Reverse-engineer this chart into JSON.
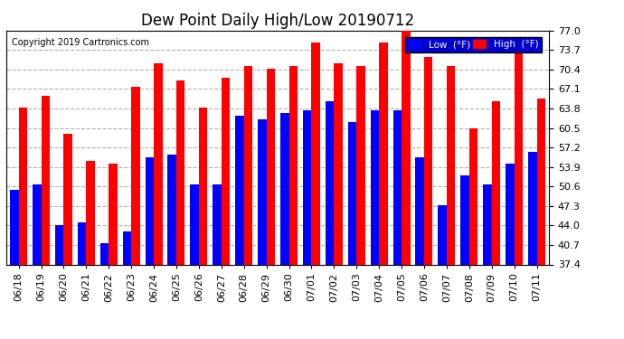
{
  "title": "Dew Point Daily High/Low 20190712",
  "copyright": "Copyright 2019 Cartronics.com",
  "background_color": "#ffffff",
  "plot_bg_color": "#ffffff",
  "bar_width": 0.38,
  "dates": [
    "06/18",
    "06/19",
    "06/20",
    "06/21",
    "06/22",
    "06/23",
    "06/24",
    "06/25",
    "06/26",
    "06/27",
    "06/28",
    "06/29",
    "06/30",
    "07/01",
    "07/02",
    "07/03",
    "07/04",
    "07/05",
    "07/06",
    "07/07",
    "07/08",
    "07/09",
    "07/10",
    "07/11"
  ],
  "low_values": [
    50.0,
    51.0,
    44.0,
    44.5,
    41.0,
    43.0,
    55.5,
    56.0,
    51.0,
    51.0,
    62.5,
    62.0,
    63.0,
    63.5,
    65.0,
    61.5,
    63.5,
    63.5,
    55.5,
    47.5,
    52.5,
    51.0,
    54.5,
    56.5
  ],
  "high_values": [
    64.0,
    66.0,
    59.5,
    55.0,
    54.5,
    67.5,
    71.5,
    68.5,
    64.0,
    69.0,
    71.0,
    70.5,
    71.0,
    75.0,
    71.5,
    71.0,
    75.0,
    77.0,
    72.5,
    71.0,
    60.5,
    65.0,
    75.0,
    65.5
  ],
  "low_color": "#0000ff",
  "high_color": "#ff0000",
  "ymin": 37.4,
  "ymax": 77.0,
  "yticks": [
    37.4,
    40.7,
    44.0,
    47.3,
    50.6,
    53.9,
    57.2,
    60.5,
    63.8,
    67.1,
    70.4,
    73.7,
    77.0
  ],
  "grid_color": "#b0b0b0",
  "title_fontsize": 12,
  "tick_fontsize": 8,
  "copyright_fontsize": 7,
  "legend_low_label": "Low  (°F)",
  "legend_high_label": "High  (°F)"
}
